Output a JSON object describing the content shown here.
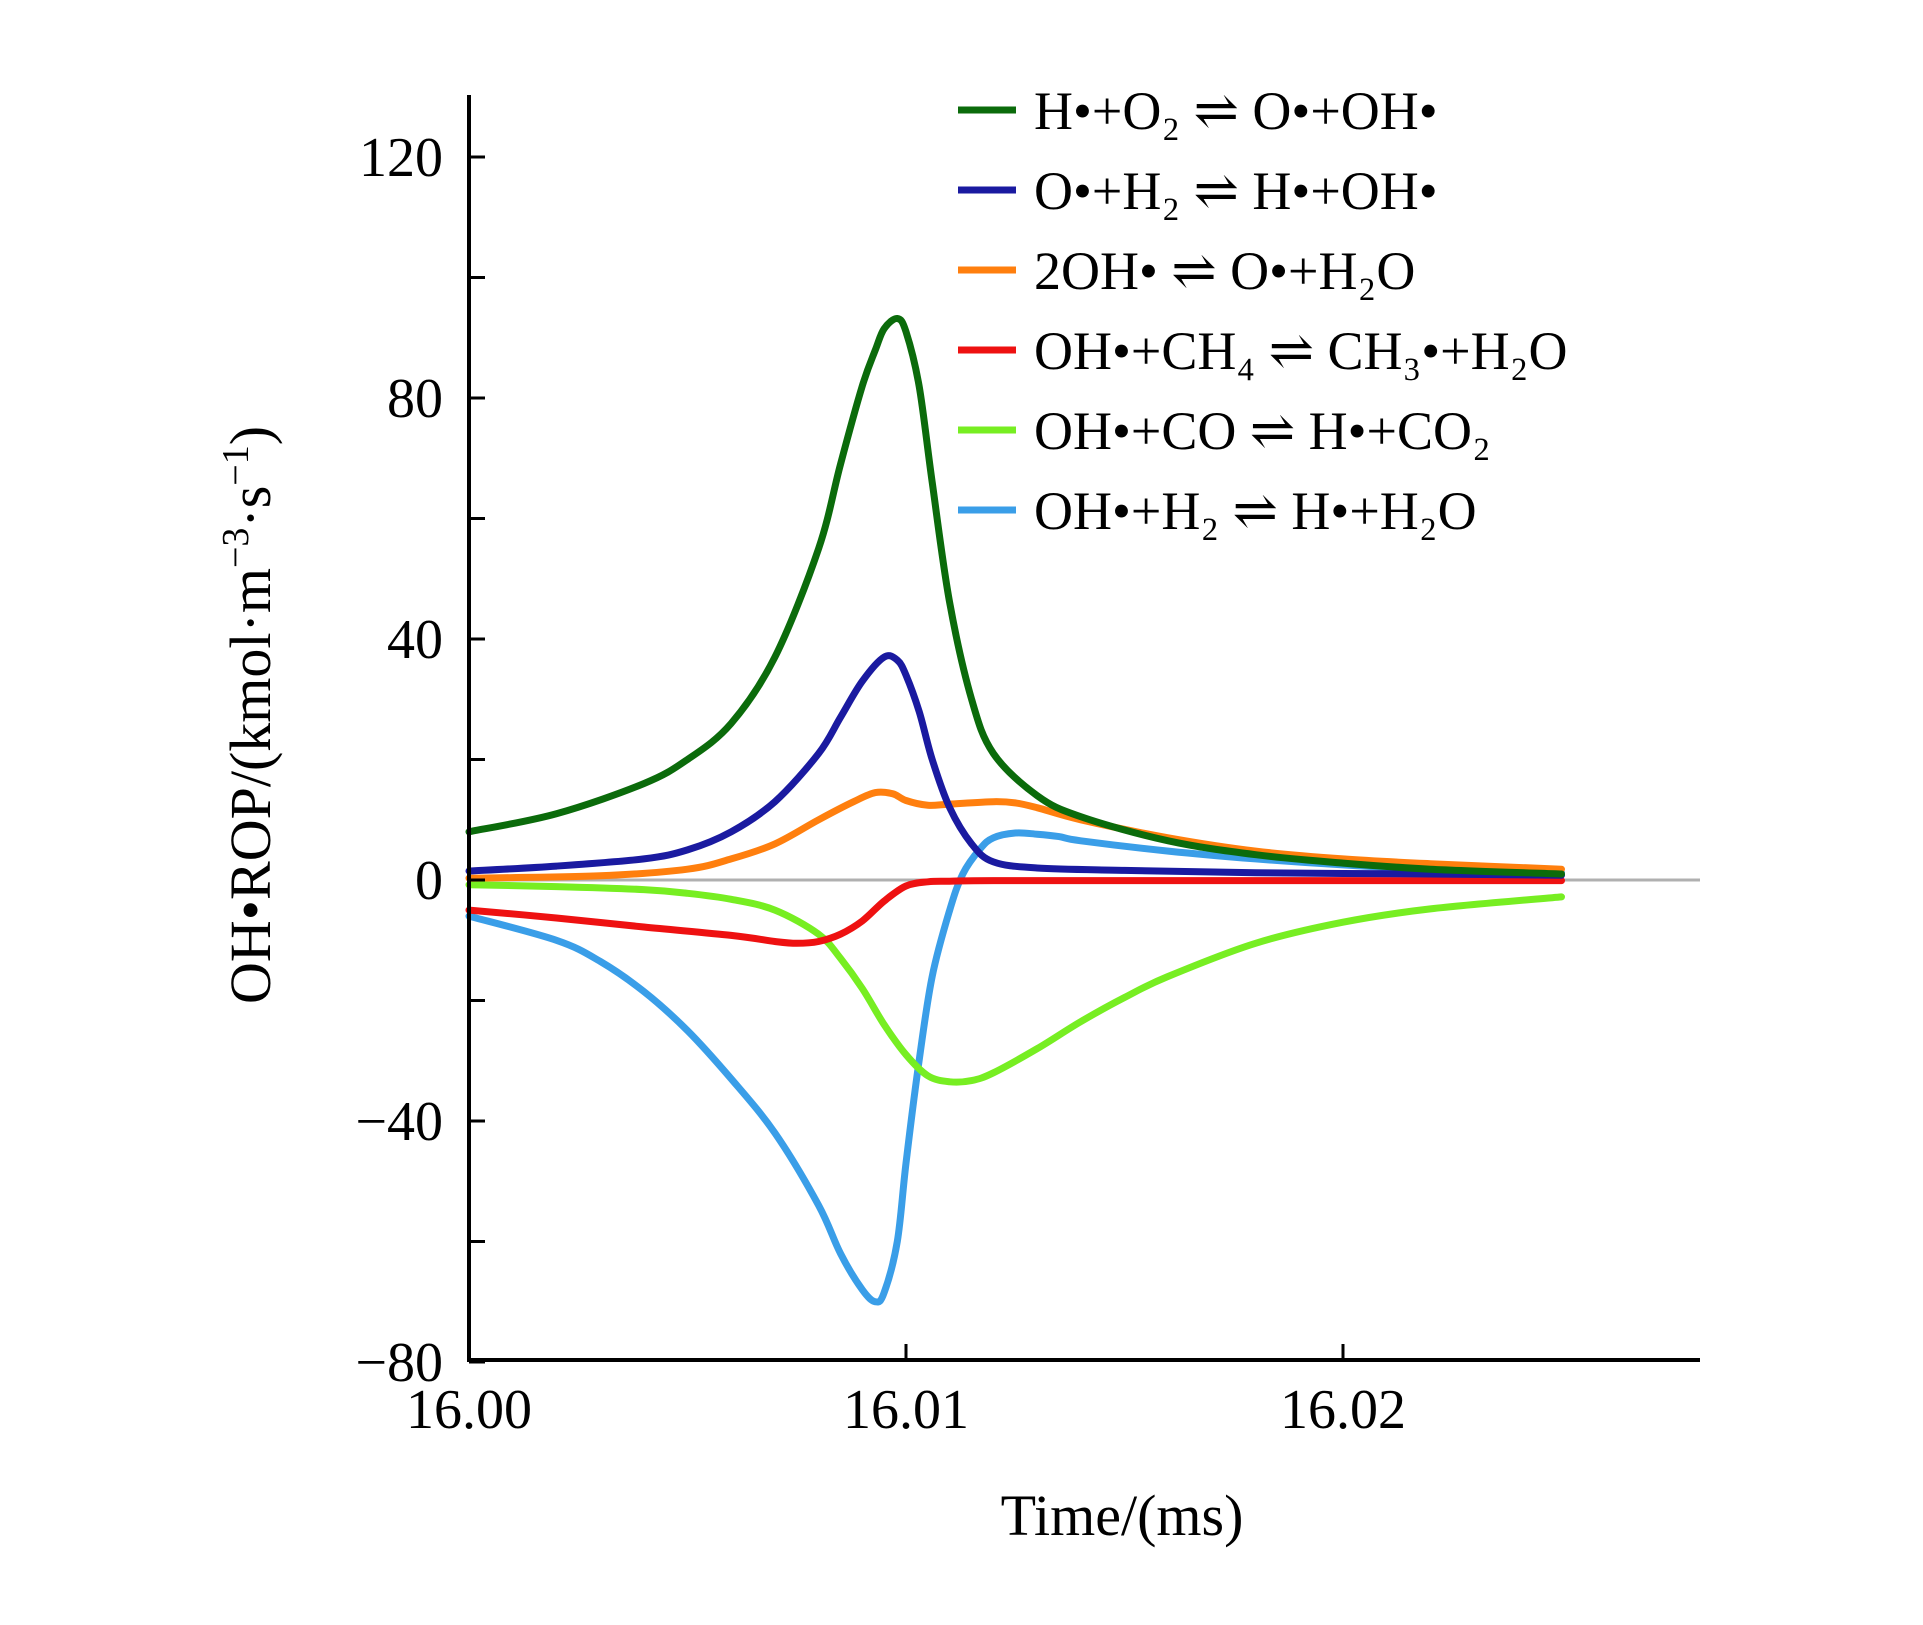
{
  "chart_data": {
    "type": "line",
    "xlabel": "Time/(ms)",
    "ylabel": "OH•ROP/(kmol·m⁻³·s⁻¹)",
    "xlim": [
      16.0,
      16.028
    ],
    "ylim": [
      -80,
      130
    ],
    "xticks": [
      16.0,
      16.01,
      16.02
    ],
    "xtick_labels": [
      "16.00",
      "16.01",
      "16.02"
    ],
    "yticks": [
      -80,
      -60,
      -40,
      -20,
      0,
      20,
      40,
      60,
      80,
      100,
      120
    ],
    "ytick_labels": {
      "-80": "−80",
      "-40": "−40",
      "0": "0",
      "40": "40",
      "80": "80",
      "120": "120"
    },
    "zero_line": true,
    "legend_position": "top-right",
    "series": [
      {
        "name": "H•+O₂⇌ O•+OH•",
        "label": "H•+O₂ ⇌ O•+OH•",
        "color": "#0b6b0b",
        "x": [
          16.0,
          16.002,
          16.004,
          16.005,
          16.006,
          16.007,
          16.008,
          16.0085,
          16.009,
          16.0093,
          16.0095,
          16.0098,
          16.01,
          16.0103,
          16.0106,
          16.011,
          16.0115,
          16.012,
          16.013,
          16.014,
          16.016,
          16.018,
          16.02,
          16.022,
          16.025
        ],
        "y": [
          8,
          11,
          16,
          20,
          26,
          37,
          55,
          69,
          82,
          88,
          91.5,
          93.2,
          91,
          82,
          66,
          46,
          30,
          21,
          14,
          10.5,
          6.5,
          4.2,
          2.8,
          1.8,
          1.0
        ]
      },
      {
        "name": "O•+H₂⇌ H•+OH•",
        "label": "O•+H₂ ⇌ H•+OH•",
        "color": "#1a1aa0",
        "x": [
          16.0,
          16.002,
          16.004,
          16.005,
          16.006,
          16.007,
          16.008,
          16.0085,
          16.009,
          16.0095,
          16.0098,
          16.01,
          16.0103,
          16.0106,
          16.011,
          16.0115,
          16.012,
          16.013,
          16.015,
          16.018,
          16.022,
          16.025
        ],
        "y": [
          1.5,
          2.3,
          3.5,
          5,
          8,
          13,
          21,
          27,
          33,
          37,
          36.5,
          34,
          28,
          20,
          12,
          6,
          3,
          2,
          1.6,
          1.2,
          1.0,
          0.8
        ]
      },
      {
        "name": "2OH•⇌ O•+H₂O",
        "label": "2OH• ⇌ O•+H₂O",
        "color": "#ff7f0e",
        "x": [
          16.0,
          16.003,
          16.005,
          16.006,
          16.007,
          16.008,
          16.0088,
          16.0093,
          16.0097,
          16.01,
          16.0105,
          16.011,
          16.012,
          16.0125,
          16.013,
          16.014,
          16.016,
          16.018,
          16.02,
          16.022,
          16.025
        ],
        "y": [
          0.3,
          0.7,
          1.8,
          3.5,
          6,
          10,
          13,
          14.5,
          14.3,
          13.2,
          12.4,
          12.6,
          13,
          12.8,
          12,
          10,
          7,
          4.8,
          3.5,
          2.7,
          1.8
        ]
      },
      {
        "name": "OH•+CH₄⇌ CH₃•+H₂O",
        "label": "OH•+CH₄ ⇌ CH₃•+H₂O",
        "color": "#ee1111",
        "x": [
          16.0,
          16.002,
          16.004,
          16.006,
          16.007,
          16.0075,
          16.008,
          16.0085,
          16.009,
          16.0095,
          16.01,
          16.0105,
          16.011,
          16.012,
          16.015,
          16.02,
          16.025
        ],
        "y": [
          -5,
          -6.3,
          -7.8,
          -9.2,
          -10.2,
          -10.5,
          -10.2,
          -9,
          -6.8,
          -3.5,
          -1,
          -0.3,
          -0.2,
          -0.1,
          -0.1,
          -0.1,
          -0.1
        ]
      },
      {
        "name": "OH•+CO⇌ H•+CO₂",
        "label": "OH•+CO ⇌ H•+CO₂",
        "color": "#77ee22",
        "x": [
          16.0,
          16.002,
          16.004,
          16.005,
          16.006,
          16.007,
          16.008,
          16.0085,
          16.009,
          16.0095,
          16.01,
          16.0105,
          16.011,
          16.0115,
          16.012,
          16.013,
          16.014,
          16.015,
          16.016,
          16.018,
          16.02,
          16.022,
          16.025
        ],
        "y": [
          -0.8,
          -1.1,
          -1.6,
          -2.2,
          -3.2,
          -5,
          -9,
          -13,
          -18,
          -24,
          -29,
          -32.5,
          -33.5,
          -33.3,
          -32,
          -28,
          -23.5,
          -19.5,
          -16,
          -10.5,
          -7,
          -4.8,
          -2.8
        ]
      },
      {
        "name": "OH•+H₂⇌ H•+H₂O",
        "label": "OH•+H₂ ⇌ H•+H₂O",
        "color": "#3a9ee8",
        "x": [
          16.0,
          16.002,
          16.003,
          16.004,
          16.005,
          16.006,
          16.007,
          16.008,
          16.0085,
          16.009,
          16.0093,
          16.0095,
          16.0098,
          16.01,
          16.0103,
          16.0106,
          16.011,
          16.0113,
          16.0117,
          16.012,
          16.0125,
          16.013,
          16.0135,
          16.014,
          16.016,
          16.018,
          16.02,
          16.022,
          16.025
        ],
        "y": [
          -6,
          -10,
          -13.5,
          -18.5,
          -25,
          -33,
          -42,
          -54,
          -62,
          -68,
          -70,
          -68.5,
          -60,
          -47,
          -30,
          -16,
          -5,
          1,
          5.2,
          7,
          7.8,
          7.6,
          7.2,
          6.5,
          4.8,
          3.5,
          2.5,
          1.8,
          1.2
        ]
      }
    ]
  }
}
